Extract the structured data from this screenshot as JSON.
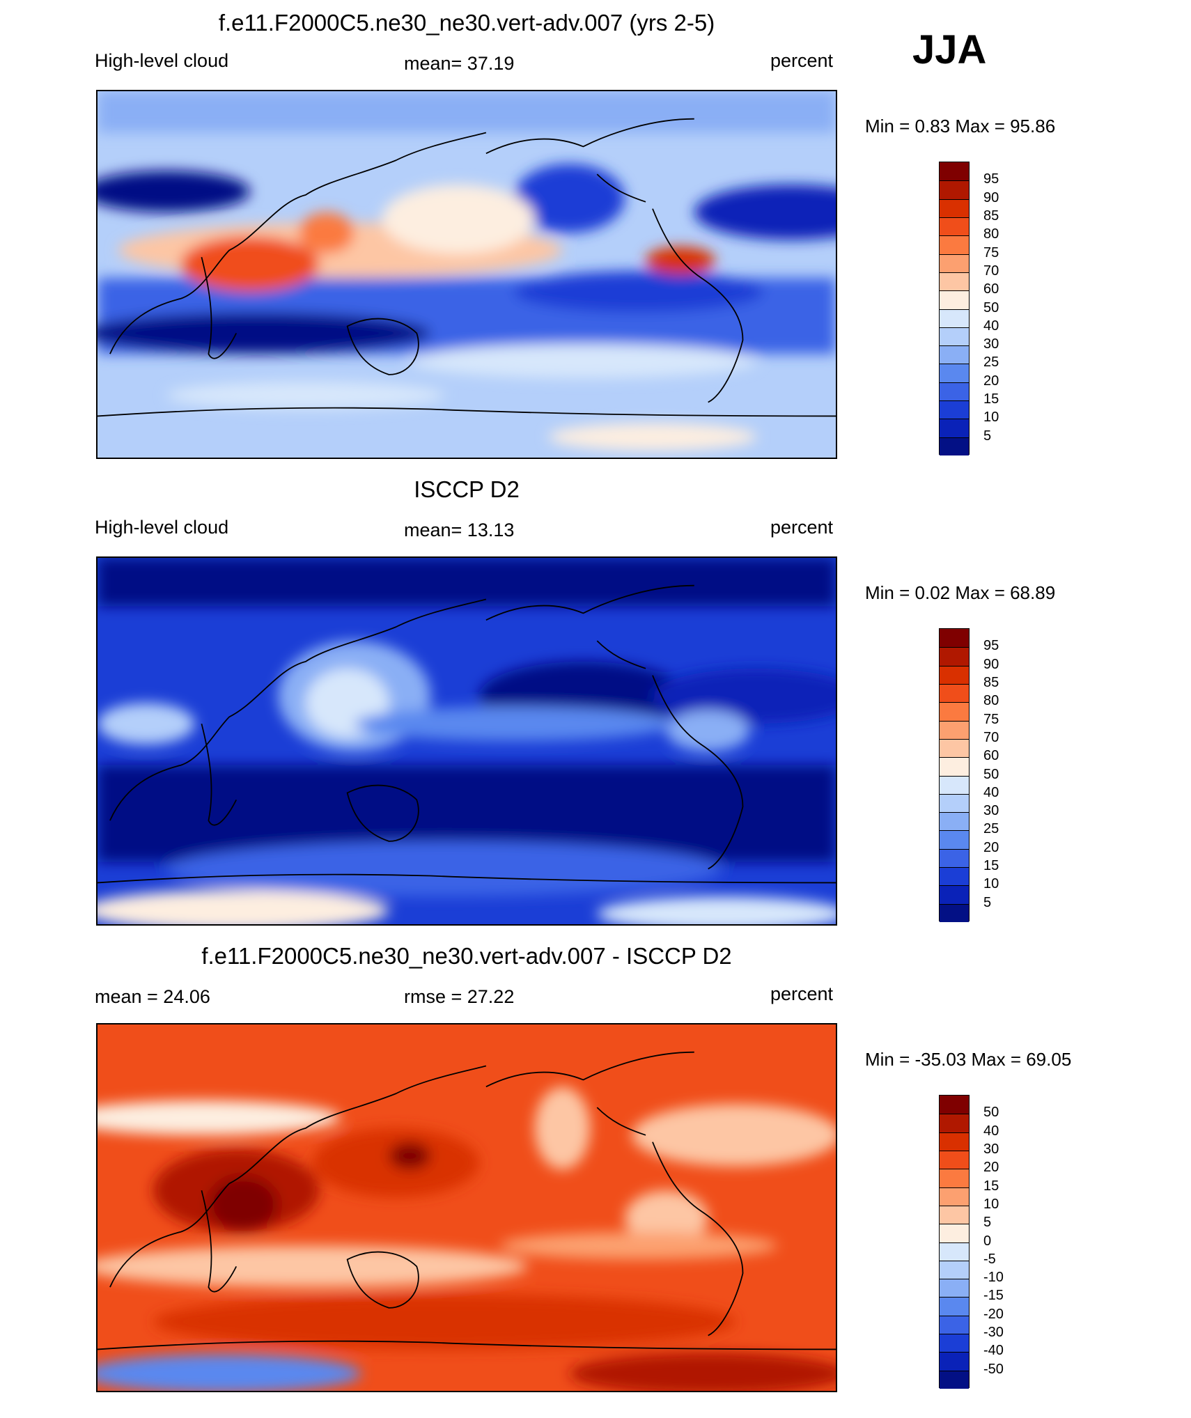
{
  "season": "JJA",
  "panels": [
    {
      "id": "model",
      "title": "f.e11.F2000C5.ne30_ne30.vert-adv.007 (yrs 2-5)",
      "left_label": "High-level cloud",
      "center_label": "mean=  37.19",
      "right_label": "percent",
      "minmax": "Min =   0.83 Max =  95.86",
      "colorbar_labels": [
        "95",
        "90",
        "85",
        "80",
        "75",
        "70",
        "60",
        "50",
        "40",
        "30",
        "25",
        "20",
        "15",
        "10",
        "5"
      ],
      "colorbar_colors": [
        "#7f0000",
        "#b01800",
        "#d93000",
        "#f04e1a",
        "#fb7a40",
        "#fca070",
        "#fdc6a4",
        "#fdeee0",
        "#d7e7fb",
        "#b4cffa",
        "#8aaff5",
        "#5a88ef",
        "#3b63e6",
        "#1b3ed6",
        "#0a22b8",
        "#031085"
      ]
    },
    {
      "id": "obs",
      "title": "ISCCP D2",
      "left_label": "High-level cloud",
      "center_label": "mean=  13.13",
      "right_label": "percent",
      "minmax": "Min =   0.02 Max =  68.89",
      "colorbar_labels": [
        "95",
        "90",
        "85",
        "80",
        "75",
        "70",
        "60",
        "50",
        "40",
        "30",
        "25",
        "20",
        "15",
        "10",
        "5"
      ],
      "colorbar_colors": [
        "#7f0000",
        "#b01800",
        "#d93000",
        "#f04e1a",
        "#fb7a40",
        "#fca070",
        "#fdc6a4",
        "#fdeee0",
        "#d7e7fb",
        "#b4cffa",
        "#8aaff5",
        "#5a88ef",
        "#3b63e6",
        "#1b3ed6",
        "#0a22b8",
        "#031085"
      ]
    },
    {
      "id": "diff",
      "title": "f.e11.F2000C5.ne30_ne30.vert-adv.007 - ISCCP D2",
      "left_label": "mean =  24.06",
      "center_label": "rmse =  27.22",
      "right_label": "percent",
      "minmax": "Min = -35.03 Max =  69.05",
      "colorbar_labels": [
        "50",
        "40",
        "30",
        "20",
        "15",
        "10",
        "5",
        "0",
        "-5",
        "-10",
        "-15",
        "-20",
        "-30",
        "-40",
        "-50"
      ],
      "colorbar_colors": [
        "#7f0000",
        "#b01800",
        "#d93000",
        "#f04e1a",
        "#fb7a40",
        "#fca070",
        "#fdc6a4",
        "#fdeee0",
        "#d7e7fb",
        "#b4cffa",
        "#8aaff5",
        "#5a88ef",
        "#3b63e6",
        "#1b3ed6",
        "#0a22b8",
        "#031085"
      ]
    }
  ]
}
